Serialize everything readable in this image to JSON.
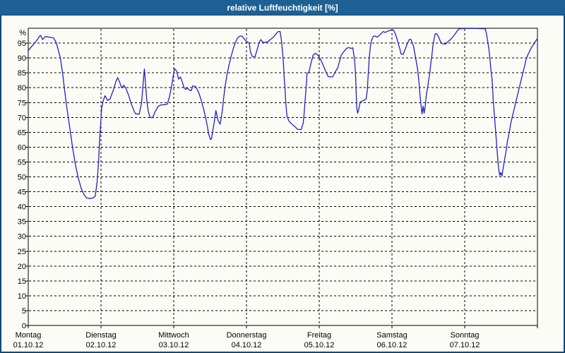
{
  "window": {
    "title": "relative Luftfeuchtigkeit [%]",
    "title_bar_color": "#1d6094",
    "frame_color": "#0e4a78",
    "background_color": "#fcfcf6"
  },
  "chart_data": {
    "type": "line",
    "title": "relative Luftfeuchtigkeit [%]",
    "ylabel": "%",
    "y_axis_unit": "%",
    "xlabel": "",
    "ylim": [
      0,
      100
    ],
    "x_range_hours": [
      0,
      168
    ],
    "grid": "dashed",
    "legend": "none",
    "line_color": "#2121c6",
    "axis_color": "#000000",
    "ytick_labels": [
      0,
      5,
      10,
      15,
      20,
      25,
      30,
      35,
      40,
      45,
      50,
      55,
      60,
      65,
      70,
      75,
      80,
      85,
      90,
      95
    ],
    "x_days": [
      {
        "name": "Montag",
        "date": "01.10.12"
      },
      {
        "name": "Dienstag",
        "date": "02.10.12"
      },
      {
        "name": "Mittwoch",
        "date": "03.10.12"
      },
      {
        "name": "Donnerstag",
        "date": "04.10.12"
      },
      {
        "name": "Freitag",
        "date": "05.10.12"
      },
      {
        "name": "Samstag",
        "date": "06.10.12"
      },
      {
        "name": "Sonntag",
        "date": "07.10.12"
      }
    ],
    "points": [
      [
        0.0,
        92.5
      ],
      [
        0.9,
        93.6
      ],
      [
        1.9,
        94.8
      ],
      [
        2.8,
        95.9
      ],
      [
        3.7,
        97.3
      ],
      [
        4.1,
        97.6
      ],
      [
        4.7,
        96.2
      ],
      [
        5.6,
        97.2
      ],
      [
        6.5,
        97.1
      ],
      [
        7.5,
        96.9
      ],
      [
        8.4,
        96.7
      ],
      [
        9.3,
        95.0
      ],
      [
        10.6,
        90.0
      ],
      [
        11.3,
        85.0
      ],
      [
        11.9,
        80.0
      ],
      [
        12.5,
        75.0
      ],
      [
        13.2,
        70.0
      ],
      [
        13.9,
        65.0
      ],
      [
        14.6,
        60.0
      ],
      [
        15.4,
        55.0
      ],
      [
        16.4,
        50.0
      ],
      [
        17.5,
        46.0
      ],
      [
        18.4,
        44.0
      ],
      [
        19.1,
        43.0
      ],
      [
        20.3,
        42.7
      ],
      [
        21.4,
        42.9
      ],
      [
        22.1,
        43.5
      ],
      [
        22.7,
        48.0
      ],
      [
        23.2,
        55.0
      ],
      [
        23.5,
        62.0
      ],
      [
        23.9,
        68.0
      ],
      [
        24.2,
        73.0
      ],
      [
        24.7,
        75.5
      ],
      [
        25.3,
        77.3
      ],
      [
        26.2,
        75.7
      ],
      [
        27.0,
        76.3
      ],
      [
        28.0,
        79.0
      ],
      [
        28.9,
        82.0
      ],
      [
        29.5,
        83.4
      ],
      [
        30.1,
        82.0
      ],
      [
        30.8,
        80.0
      ],
      [
        31.5,
        80.8
      ],
      [
        32.2,
        79.8
      ],
      [
        33.1,
        77.5
      ],
      [
        34.0,
        74.5
      ],
      [
        35.0,
        72.0
      ],
      [
        35.4,
        71.2
      ],
      [
        36.6,
        71.1
      ],
      [
        37.4,
        75.0
      ],
      [
        37.8,
        80.0
      ],
      [
        38.3,
        86.3
      ],
      [
        38.8,
        80.0
      ],
      [
        39.2,
        75.0
      ],
      [
        39.6,
        72.0
      ],
      [
        40.2,
        70.0
      ],
      [
        41.0,
        69.9
      ],
      [
        41.9,
        72.0
      ],
      [
        42.9,
        73.8
      ],
      [
        43.8,
        74.2
      ],
      [
        45.2,
        74.3
      ],
      [
        45.9,
        74.5
      ],
      [
        46.6,
        77.0
      ],
      [
        47.2,
        80.0
      ],
      [
        47.7,
        83.0
      ],
      [
        48.2,
        86.4
      ],
      [
        48.9,
        85.7
      ],
      [
        49.6,
        82.9
      ],
      [
        50.2,
        83.6
      ],
      [
        50.8,
        82.0
      ],
      [
        51.4,
        80.0
      ],
      [
        52.0,
        79.4
      ],
      [
        52.4,
        80.0
      ],
      [
        53.1,
        79.2
      ],
      [
        53.8,
        79.0
      ],
      [
        54.3,
        80.6
      ],
      [
        55.2,
        80.4
      ],
      [
        56.2,
        78.5
      ],
      [
        57.0,
        76.0
      ],
      [
        57.8,
        73.0
      ],
      [
        58.5,
        70.0
      ],
      [
        59.1,
        67.0
      ],
      [
        59.5,
        64.5
      ],
      [
        60.1,
        62.6
      ],
      [
        60.5,
        62.8
      ],
      [
        60.8,
        65.0
      ],
      [
        61.3,
        68.0
      ],
      [
        61.9,
        72.3
      ],
      [
        62.6,
        69.0
      ],
      [
        63.3,
        67.7
      ],
      [
        64.0,
        72.0
      ],
      [
        64.4,
        76.0
      ],
      [
        64.9,
        80.0
      ],
      [
        65.5,
        84.0
      ],
      [
        66.1,
        87.0
      ],
      [
        66.8,
        90.0
      ],
      [
        67.6,
        93.0
      ],
      [
        68.3,
        95.2
      ],
      [
        69.1,
        96.8
      ],
      [
        69.9,
        97.4
      ],
      [
        70.6,
        97.3
      ],
      [
        71.5,
        96.0
      ],
      [
        72.4,
        95.3
      ],
      [
        72.9,
        95.1
      ],
      [
        73.3,
        92.0
      ],
      [
        73.9,
        90.5
      ],
      [
        74.8,
        90.4
      ],
      [
        75.6,
        93.0
      ],
      [
        76.1,
        95.0
      ],
      [
        76.7,
        96.2
      ],
      [
        77.5,
        95.2
      ],
      [
        78.3,
        95.3
      ],
      [
        79.0,
        95.4
      ],
      [
        79.9,
        96.2
      ],
      [
        80.9,
        97.0
      ],
      [
        81.8,
        98.2
      ],
      [
        82.5,
        98.9
      ],
      [
        83.1,
        98.9
      ],
      [
        83.5,
        96.0
      ],
      [
        83.9,
        92.0
      ],
      [
        84.2,
        88.0
      ],
      [
        84.4,
        84.0
      ],
      [
        84.7,
        80.0
      ],
      [
        84.9,
        76.0
      ],
      [
        85.2,
        72.0
      ],
      [
        85.4,
        70.3
      ],
      [
        86.0,
        68.8
      ],
      [
        86.7,
        68.0
      ],
      [
        87.5,
        67.3
      ],
      [
        88.2,
        66.7
      ],
      [
        88.8,
        66.0
      ],
      [
        90.0,
        65.9
      ],
      [
        90.7,
        68.0
      ],
      [
        91.0,
        71.0
      ],
      [
        91.3,
        75.0
      ],
      [
        91.6,
        79.0
      ],
      [
        91.8,
        82.0
      ],
      [
        92.0,
        84.8
      ],
      [
        92.6,
        85.2
      ],
      [
        93.1,
        87.5
      ],
      [
        93.6,
        89.5
      ],
      [
        94.0,
        91.0
      ],
      [
        94.6,
        91.5
      ],
      [
        95.1,
        91.4
      ],
      [
        95.5,
        91.0
      ],
      [
        96.0,
        90.3
      ],
      [
        96.9,
        88.5
      ],
      [
        97.9,
        86.0
      ],
      [
        98.7,
        84.3
      ],
      [
        99.0,
        83.7
      ],
      [
        100.4,
        83.6
      ],
      [
        101.4,
        85.5
      ],
      [
        102.1,
        86.7
      ],
      [
        102.6,
        88.5
      ],
      [
        103.3,
        91.0
      ],
      [
        104.4,
        92.5
      ],
      [
        105.1,
        93.3
      ],
      [
        105.8,
        93.5
      ],
      [
        106.5,
        93.2
      ],
      [
        107.1,
        93.4
      ],
      [
        107.7,
        89.0
      ],
      [
        108.0,
        84.0
      ],
      [
        108.2,
        78.0
      ],
      [
        108.4,
        73.0
      ],
      [
        108.7,
        71.4
      ],
      [
        109.2,
        73.5
      ],
      [
        109.5,
        75.2
      ],
      [
        110.5,
        75.6
      ],
      [
        111.5,
        76.2
      ],
      [
        111.9,
        79.5
      ],
      [
        112.2,
        85.0
      ],
      [
        112.5,
        90.0
      ],
      [
        112.9,
        94.0
      ],
      [
        113.3,
        96.0
      ],
      [
        113.8,
        97.2
      ],
      [
        114.4,
        97.4
      ],
      [
        115.1,
        97.0
      ],
      [
        115.8,
        97.6
      ],
      [
        116.5,
        98.3
      ],
      [
        117.1,
        98.9
      ],
      [
        117.7,
        98.6
      ],
      [
        118.4,
        98.9
      ],
      [
        119.1,
        99.2
      ],
      [
        119.8,
        99.4
      ],
      [
        120.5,
        99.4
      ],
      [
        121.2,
        98.0
      ],
      [
        121.9,
        95.5
      ],
      [
        122.6,
        93.0
      ],
      [
        123.0,
        91.3
      ],
      [
        123.7,
        91.2
      ],
      [
        124.4,
        93.0
      ],
      [
        125.1,
        95.0
      ],
      [
        125.8,
        96.3
      ],
      [
        126.3,
        96.2
      ],
      [
        127.1,
        94.0
      ],
      [
        127.8,
        90.0
      ],
      [
        128.4,
        86.5
      ],
      [
        128.9,
        82.0
      ],
      [
        129.2,
        78.0
      ],
      [
        129.6,
        74.0
      ],
      [
        129.9,
        71.2
      ],
      [
        130.3,
        73.8
      ],
      [
        130.6,
        71.4
      ],
      [
        131.0,
        74.0
      ],
      [
        131.4,
        78.0
      ],
      [
        131.9,
        81.0
      ],
      [
        132.1,
        82.5
      ],
      [
        132.5,
        85.0
      ],
      [
        132.8,
        88.0
      ],
      [
        133.2,
        91.0
      ],
      [
        133.5,
        94.0
      ],
      [
        133.9,
        96.5
      ],
      [
        134.3,
        98.2
      ],
      [
        134.8,
        98.1
      ],
      [
        135.4,
        97.0
      ],
      [
        136.0,
        95.5
      ],
      [
        136.6,
        94.8
      ],
      [
        137.7,
        94.7
      ],
      [
        138.5,
        95.5
      ],
      [
        139.4,
        96.3
      ],
      [
        140.2,
        97.2
      ],
      [
        140.9,
        98.2
      ],
      [
        141.6,
        99.2
      ],
      [
        142.2,
        99.8
      ],
      [
        144.5,
        99.9
      ],
      [
        148.0,
        99.9
      ],
      [
        150.8,
        99.8
      ],
      [
        151.2,
        98.0
      ],
      [
        151.7,
        95.0
      ],
      [
        152.1,
        92.0
      ],
      [
        152.3,
        90.0
      ],
      [
        152.6,
        86.5
      ],
      [
        153.0,
        83.0
      ],
      [
        153.2,
        80.0
      ],
      [
        153.4,
        76.0
      ],
      [
        153.7,
        72.0
      ],
      [
        154.0,
        68.0
      ],
      [
        154.3,
        64.0
      ],
      [
        154.6,
        60.0
      ],
      [
        154.9,
        56.0
      ],
      [
        155.2,
        52.5
      ],
      [
        155.6,
        50.4
      ],
      [
        155.9,
        51.5
      ],
      [
        156.3,
        50.3
      ],
      [
        156.7,
        53.0
      ],
      [
        157.2,
        56.0
      ],
      [
        157.7,
        59.0
      ],
      [
        158.1,
        62.0
      ],
      [
        158.7,
        65.0
      ],
      [
        159.2,
        68.0
      ],
      [
        159.9,
        71.0
      ],
      [
        160.6,
        74.0
      ],
      [
        161.3,
        77.0
      ],
      [
        162.0,
        80.0
      ],
      [
        162.6,
        82.5
      ],
      [
        163.2,
        85.0
      ],
      [
        163.8,
        87.5
      ],
      [
        164.2,
        89.3
      ],
      [
        164.8,
        91.0
      ],
      [
        165.5,
        92.5
      ],
      [
        166.2,
        93.8
      ],
      [
        166.9,
        94.8
      ],
      [
        167.4,
        95.7
      ],
      [
        168.0,
        96.5
      ]
    ]
  }
}
